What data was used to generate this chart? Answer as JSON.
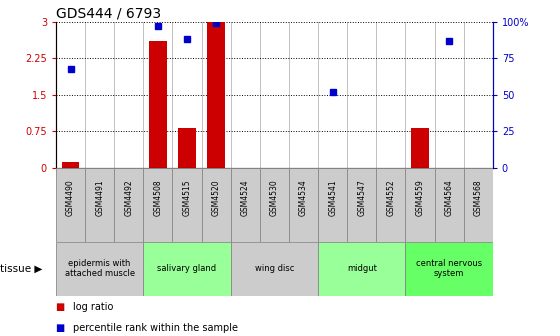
{
  "title": "GDS444 / 6793",
  "samples": [
    "GSM4490",
    "GSM4491",
    "GSM4492",
    "GSM4508",
    "GSM4515",
    "GSM4520",
    "GSM4524",
    "GSM4530",
    "GSM4534",
    "GSM4541",
    "GSM4547",
    "GSM4552",
    "GSM4559",
    "GSM4564",
    "GSM4568"
  ],
  "log_ratio": [
    0.12,
    0.0,
    0.0,
    2.6,
    0.82,
    3.0,
    0.0,
    0.0,
    0.0,
    -0.05,
    0.0,
    0.0,
    0.82,
    0.0,
    0.0
  ],
  "percentile": [
    68,
    null,
    null,
    97,
    88,
    99,
    null,
    null,
    null,
    52,
    null,
    null,
    null,
    87,
    null
  ],
  "ylim_left": [
    0,
    3
  ],
  "ylim_right": [
    0,
    100
  ],
  "yticks_left": [
    0,
    0.75,
    1.5,
    2.25,
    3
  ],
  "ytick_labels_left": [
    "0",
    "0.75",
    "1.5",
    "2.25",
    "3"
  ],
  "yticks_right": [
    0,
    25,
    50,
    75,
    100
  ],
  "ytick_labels_right": [
    "0",
    "25",
    "50",
    "75",
    "100%"
  ],
  "bar_color": "#cc0000",
  "dot_color": "#0000cc",
  "tissue_groups": [
    {
      "label": "epidermis with\nattached muscle",
      "start": 0,
      "end": 3,
      "color": "#cccccc"
    },
    {
      "label": "salivary gland",
      "start": 3,
      "end": 6,
      "color": "#99ff99"
    },
    {
      "label": "wing disc",
      "start": 6,
      "end": 9,
      "color": "#cccccc"
    },
    {
      "label": "midgut",
      "start": 9,
      "end": 12,
      "color": "#99ff99"
    },
    {
      "label": "central nervous\nsystem",
      "start": 12,
      "end": 15,
      "color": "#66ff66"
    }
  ],
  "tissue_label": "tissue",
  "legend_bar_label": "log ratio",
  "legend_dot_label": "percentile rank within the sample",
  "dotted_line_color": "#000000",
  "axis_left_color": "#cc0000",
  "axis_right_color": "#0000cc",
  "cell_color": "#cccccc",
  "cell_border_color": "#888888"
}
